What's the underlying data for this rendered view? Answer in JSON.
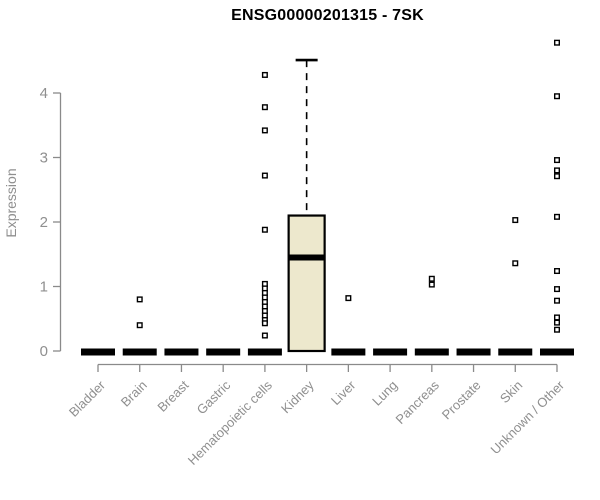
{
  "title": "ENSG00000201315 - 7SK",
  "chart_data": {
    "type": "boxplot",
    "title": "ENSG00000201315 - 7SK",
    "xlabel": "",
    "ylabel": "Expression",
    "ylim": [
      0,
      4.9
    ],
    "yticks": [
      0,
      1,
      2,
      3,
      4
    ],
    "grid": false,
    "legend": "none",
    "categories": [
      "Bladder",
      "Brain",
      "Breast",
      "Gastric",
      "Hematopoietic cells",
      "Kidney",
      "Liver",
      "Lung",
      "Pancreas",
      "Prostate",
      "Skin",
      "Unknown / Other"
    ],
    "boxes": [
      {
        "category": "Bladder",
        "q1": 0,
        "median": 0,
        "q3": 0,
        "whisker_low": 0,
        "whisker_high": 0,
        "outliers": []
      },
      {
        "category": "Brain",
        "q1": 0,
        "median": 0,
        "q3": 0,
        "whisker_low": 0,
        "whisker_high": 0,
        "outliers": [
          0.8,
          0.4
        ]
      },
      {
        "category": "Breast",
        "q1": 0,
        "median": 0,
        "q3": 0,
        "whisker_low": 0,
        "whisker_high": 0,
        "outliers": []
      },
      {
        "category": "Gastric",
        "q1": 0,
        "median": 0,
        "q3": 0,
        "whisker_low": 0,
        "whisker_high": 0,
        "outliers": []
      },
      {
        "category": "Hematopoietic cells",
        "q1": 0,
        "median": 0,
        "q3": 0,
        "whisker_low": 0,
        "whisker_high": 0,
        "outliers": [
          4.28,
          3.78,
          3.42,
          2.72,
          1.88,
          1.04,
          0.97,
          0.9,
          0.83,
          0.76,
          0.69,
          0.62,
          0.55,
          0.48,
          0.43,
          0.24
        ]
      },
      {
        "category": "Kidney",
        "q1": 0,
        "median": 1.45,
        "q3": 2.1,
        "whisker_low": 0,
        "whisker_high": 4.51,
        "outliers": []
      },
      {
        "category": "Liver",
        "q1": 0,
        "median": 0,
        "q3": 0,
        "whisker_low": 0,
        "whisker_high": 0,
        "outliers": [
          0.82
        ]
      },
      {
        "category": "Lung",
        "q1": 0,
        "median": 0,
        "q3": 0,
        "whisker_low": 0,
        "whisker_high": 0,
        "outliers": []
      },
      {
        "category": "Pancreas",
        "q1": 0,
        "median": 0,
        "q3": 0,
        "whisker_low": 0,
        "whisker_high": 0,
        "outliers": [
          1.12,
          1.03
        ]
      },
      {
        "category": "Prostate",
        "q1": 0,
        "median": 0,
        "q3": 0,
        "whisker_low": 0,
        "whisker_high": 0,
        "outliers": []
      },
      {
        "category": "Skin",
        "q1": 0,
        "median": 0,
        "q3": 0,
        "whisker_low": 0,
        "whisker_high": 0,
        "outliers": [
          2.03,
          1.36
        ]
      },
      {
        "category": "Unknown / Other",
        "q1": 0,
        "median": 0,
        "q3": 0,
        "whisker_low": 0,
        "whisker_high": 0,
        "outliers": [
          4.78,
          3.95,
          2.96,
          2.8,
          2.71,
          2.08,
          1.24,
          0.96,
          0.78,
          0.52,
          0.44,
          0.33
        ]
      }
    ],
    "colors": {
      "box_fill": "#ede8cd",
      "box_line": "#000000",
      "median_line": "#000000",
      "outlier": "#000000",
      "axis": "#8a8a8a",
      "axis_text": "#8f8f8f",
      "title_text": "#000000",
      "background": "#ffffff"
    }
  }
}
